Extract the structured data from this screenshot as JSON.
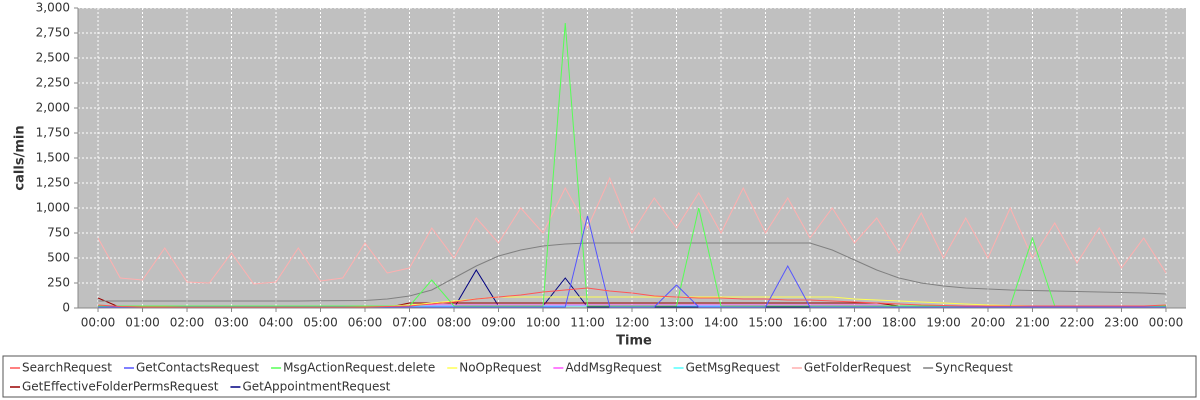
{
  "chart_data": {
    "type": "line",
    "x_label": "Time",
    "y_label": "calls/min",
    "xlim": [
      -0.45,
      24.45
    ],
    "ylim": [
      0,
      3000
    ],
    "xticks": [
      {
        "value": 0,
        "label": "00:00"
      },
      {
        "value": 1,
        "label": "01:00"
      },
      {
        "value": 2,
        "label": "02:00"
      },
      {
        "value": 3,
        "label": "03:00"
      },
      {
        "value": 4,
        "label": "04:00"
      },
      {
        "value": 5,
        "label": "05:00"
      },
      {
        "value": 6,
        "label": "06:00"
      },
      {
        "value": 7,
        "label": "07:00"
      },
      {
        "value": 8,
        "label": "08:00"
      },
      {
        "value": 9,
        "label": "09:00"
      },
      {
        "value": 10,
        "label": "10:00"
      },
      {
        "value": 11,
        "label": "11:00"
      },
      {
        "value": 12,
        "label": "12:00"
      },
      {
        "value": 13,
        "label": "13:00"
      },
      {
        "value": 14,
        "label": "14:00"
      },
      {
        "value": 15,
        "label": "15:00"
      },
      {
        "value": 16,
        "label": "16:00"
      },
      {
        "value": 17,
        "label": "17:00"
      },
      {
        "value": 18,
        "label": "18:00"
      },
      {
        "value": 19,
        "label": "19:00"
      },
      {
        "value": 20,
        "label": "20:00"
      },
      {
        "value": 21,
        "label": "21:00"
      },
      {
        "value": 22,
        "label": "22:00"
      },
      {
        "value": 23,
        "label": "23:00"
      },
      {
        "value": 24,
        "label": "00:00"
      }
    ],
    "yticks": [
      0,
      250,
      500,
      750,
      {
        "value": 1000,
        "label": "1,000"
      },
      {
        "value": 1250,
        "label": "1,250"
      },
      {
        "value": 1500,
        "label": "1,500"
      },
      {
        "value": 1750,
        "label": "1,750"
      },
      {
        "value": 2000,
        "label": "2,000"
      },
      {
        "value": 2250,
        "label": "2,250"
      },
      {
        "value": 2500,
        "label": "2,500"
      },
      {
        "value": 2750,
        "label": "2,750"
      },
      {
        "value": 3000,
        "label": "3,000"
      }
    ],
    "grid": true,
    "x": [
      0,
      0.5,
      1,
      1.5,
      2,
      2.5,
      3,
      3.5,
      4,
      4.5,
      5,
      5.5,
      6,
      6.5,
      7,
      7.5,
      8,
      8.5,
      9,
      9.5,
      10,
      10.5,
      11,
      11.5,
      12,
      12.5,
      13,
      13.5,
      14,
      14.5,
      15,
      15.5,
      16,
      16.5,
      17,
      17.5,
      18,
      18.5,
      19,
      19.5,
      20,
      20.5,
      21,
      21.5,
      22,
      22.5,
      23,
      23.5,
      24
    ],
    "series": [
      {
        "name": "SearchRequest",
        "color": "#ff5555",
        "values": [
          30,
          15,
          10,
          10,
          8,
          8,
          8,
          8,
          8,
          8,
          8,
          8,
          10,
          15,
          20,
          40,
          60,
          90,
          110,
          130,
          160,
          180,
          200,
          170,
          150,
          120,
          110,
          100,
          100,
          90,
          90,
          80,
          80,
          70,
          60,
          50,
          40,
          30,
          25,
          20,
          20,
          20,
          20,
          20,
          20,
          20,
          20,
          20,
          30
        ]
      },
      {
        "name": "GetContactsRequest",
        "color": "#5555ff",
        "values": [
          10,
          10,
          10,
          10,
          10,
          10,
          10,
          10,
          10,
          10,
          10,
          10,
          10,
          10,
          10,
          10,
          10,
          10,
          10,
          10,
          10,
          10,
          920,
          10,
          10,
          10,
          230,
          10,
          10,
          10,
          10,
          420,
          10,
          10,
          10,
          10,
          10,
          10,
          10,
          10,
          10,
          10,
          10,
          10,
          10,
          10,
          10,
          10,
          10
        ]
      },
      {
        "name": "MsgActionRequest.delete",
        "color": "#55ff55",
        "values": [
          20,
          20,
          20,
          20,
          20,
          20,
          20,
          20,
          20,
          20,
          20,
          20,
          20,
          20,
          20,
          280,
          20,
          20,
          20,
          20,
          20,
          2850,
          20,
          20,
          20,
          20,
          20,
          1000,
          20,
          20,
          20,
          20,
          20,
          20,
          20,
          20,
          20,
          20,
          20,
          20,
          20,
          20,
          700,
          20,
          20,
          20,
          20,
          20,
          20
        ]
      },
      {
        "name": "NoOpRequest",
        "color": "#ffff55",
        "values": [
          5,
          5,
          5,
          5,
          5,
          5,
          5,
          5,
          5,
          5,
          5,
          5,
          10,
          20,
          30,
          50,
          70,
          90,
          110,
          110,
          110,
          110,
          110,
          110,
          110,
          110,
          110,
          110,
          110,
          110,
          110,
          110,
          110,
          110,
          90,
          80,
          70,
          60,
          50,
          40,
          30,
          25,
          20,
          15,
          10,
          10,
          10,
          10,
          10
        ]
      },
      {
        "name": "AddMsgRequest",
        "color": "#ff55ff",
        "values": [
          5,
          5,
          5,
          5,
          5,
          5,
          5,
          5,
          5,
          5,
          5,
          5,
          5,
          5,
          30,
          30,
          30,
          30,
          30,
          30,
          30,
          30,
          30,
          30,
          30,
          30,
          30,
          30,
          30,
          30,
          30,
          30,
          30,
          30,
          30,
          30,
          10,
          10,
          10,
          10,
          10,
          10,
          10,
          10,
          10,
          10,
          10,
          10,
          10
        ]
      },
      {
        "name": "GetMsgRequest",
        "color": "#55ffff",
        "values": [
          3,
          3,
          3,
          3,
          3,
          3,
          3,
          3,
          3,
          3,
          3,
          3,
          3,
          3,
          20,
          20,
          20,
          20,
          20,
          20,
          20,
          20,
          20,
          20,
          20,
          20,
          20,
          20,
          20,
          20,
          20,
          20,
          20,
          20,
          20,
          20,
          5,
          5,
          5,
          5,
          5,
          5,
          5,
          5,
          5,
          5,
          5,
          5,
          5
        ]
      },
      {
        "name": "GetFolderRequest",
        "color": "#ffafaf",
        "values": [
          700,
          300,
          280,
          600,
          260,
          250,
          550,
          240,
          260,
          600,
          270,
          300,
          650,
          350,
          400,
          800,
          500,
          900,
          650,
          1000,
          750,
          1200,
          800,
          1300,
          750,
          1100,
          800,
          1150,
          750,
          1200,
          750,
          1100,
          700,
          1000,
          650,
          900,
          550,
          950,
          500,
          900,
          500,
          1000,
          500,
          850,
          450,
          800,
          400,
          700,
          350
        ]
      },
      {
        "name": "SyncRequest",
        "color": "#808080",
        "values": [
          70,
          70,
          70,
          70,
          70,
          70,
          70,
          70,
          70,
          70,
          72,
          74,
          75,
          90,
          120,
          180,
          300,
          420,
          520,
          580,
          620,
          640,
          650,
          650,
          650,
          650,
          650,
          650,
          650,
          650,
          650,
          650,
          650,
          580,
          480,
          380,
          300,
          250,
          220,
          200,
          190,
          180,
          175,
          170,
          165,
          160,
          155,
          150,
          140
        ]
      },
      {
        "name": "GetEffectiveFolderPermsRequest",
        "color": "#990000",
        "values": [
          100,
          5,
          5,
          5,
          5,
          5,
          5,
          5,
          5,
          5,
          5,
          5,
          5,
          5,
          50,
          50,
          50,
          50,
          50,
          50,
          50,
          50,
          50,
          50,
          50,
          50,
          50,
          50,
          50,
          50,
          50,
          50,
          50,
          50,
          50,
          50,
          20,
          20,
          20,
          20,
          20,
          20,
          20,
          20,
          20,
          20,
          20,
          20,
          20
        ]
      },
      {
        "name": "GetAppointmentRequest",
        "color": "#000080",
        "values": [
          0,
          0,
          0,
          0,
          0,
          0,
          0,
          0,
          0,
          0,
          0,
          0,
          0,
          0,
          0,
          0,
          0,
          380,
          20,
          20,
          20,
          300,
          10,
          10,
          10,
          10,
          10,
          10,
          10,
          10,
          10,
          10,
          10,
          10,
          10,
          10,
          10,
          10,
          10,
          10,
          10,
          10,
          10,
          10,
          10,
          10,
          10,
          10,
          10
        ]
      }
    ]
  }
}
